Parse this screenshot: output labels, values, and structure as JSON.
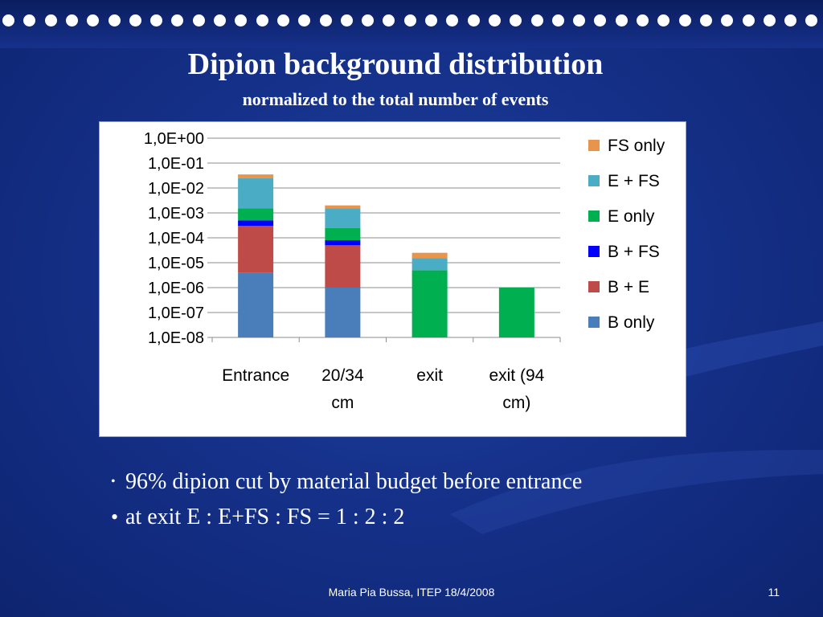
{
  "slide": {
    "title": "Dipion background distribution",
    "subtitle": "normalized to the total number of events",
    "bullets": [
      "96% dipion cut by material budget before entrance",
      "at exit E : E+FS : FS = 1 : 2 : 2"
    ],
    "footer": "Maria Pia Bussa,  ITEP 18/4/2008",
    "page_number": "11"
  },
  "chart_data": {
    "type": "bar",
    "stacked": true,
    "y_scale": "log",
    "ylim": [
      1e-08,
      1
    ],
    "y_ticks": [
      "1,0E+00",
      "1,0E-01",
      "1,0E-02",
      "1,0E-03",
      "1,0E-04",
      "1,0E-05",
      "1,0E-06",
      "1,0E-07",
      "1,0E-08"
    ],
    "categories": [
      "Entrance",
      "20/34 cm",
      "exit",
      "exit (94 cm)"
    ],
    "category_lines": [
      [
        "Entrance"
      ],
      [
        "20/34",
        "cm"
      ],
      [
        "exit"
      ],
      [
        "exit (94",
        "cm)"
      ]
    ],
    "legend_position": "right",
    "grid": true,
    "series": [
      {
        "name": "B only",
        "color": "#4a7ebb",
        "cumulative_top": [
          4e-06,
          1e-06,
          null,
          null
        ]
      },
      {
        "name": "B + E",
        "color": "#be4b48",
        "cumulative_top": [
          0.0003,
          5e-05,
          null,
          null
        ]
      },
      {
        "name": "B + FS",
        "color": "#0000ff",
        "cumulative_top": [
          0.0005,
          8e-05,
          null,
          null
        ]
      },
      {
        "name": "E only",
        "color": "#00b050",
        "cumulative_top": [
          0.0015,
          0.00025,
          5e-06,
          1e-06
        ]
      },
      {
        "name": "E + FS",
        "color": "#4bacc6",
        "cumulative_top": [
          0.025,
          0.0015,
          1.5e-05,
          null
        ]
      },
      {
        "name": "FS only",
        "color": "#e8944a",
        "cumulative_top": [
          0.035,
          0.002,
          2.5e-05,
          null
        ]
      }
    ]
  }
}
